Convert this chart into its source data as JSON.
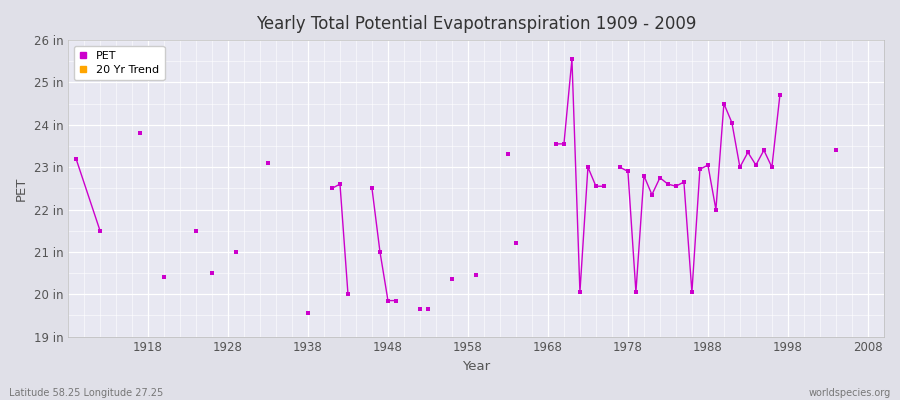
{
  "title": "Yearly Total Potential Evapotranspiration 1909 - 2009",
  "xlabel": "Year",
  "ylabel": "PET",
  "bottom_left": "Latitude 58.25 Longitude 27.25",
  "bottom_right": "worldspecies.org",
  "ylim": [
    19,
    26
  ],
  "ytick_labels": [
    "19 in",
    "20 in",
    "21 in",
    "22 in",
    "23 in",
    "24 in",
    "25 in",
    "26 in"
  ],
  "ytick_values": [
    19,
    20,
    21,
    22,
    23,
    24,
    25,
    26
  ],
  "xlim": [
    1908,
    2010
  ],
  "xtick_values": [
    1918,
    1928,
    1938,
    1948,
    1958,
    1968,
    1978,
    1988,
    1998,
    2008
  ],
  "pet_color": "#cc00cc",
  "trend_color": "#ffa500",
  "bg_color": "#e0e0e8",
  "plot_bg": "#e8e8f2",
  "grid_color": "#ffffff",
  "data": [
    [
      1909,
      23.2
    ],
    [
      1912,
      21.5
    ],
    [
      1917,
      23.8
    ],
    [
      1920,
      20.4
    ],
    [
      1924,
      21.5
    ],
    [
      1926,
      20.5
    ],
    [
      1929,
      21.0
    ],
    [
      1933,
      23.1
    ],
    [
      1938,
      19.55
    ],
    [
      1941,
      22.5
    ],
    [
      1942,
      22.6
    ],
    [
      1943,
      20.0
    ],
    [
      1946,
      22.5
    ],
    [
      1947,
      21.0
    ],
    [
      1948,
      19.85
    ],
    [
      1949,
      19.85
    ],
    [
      1952,
      19.65
    ],
    [
      1953,
      19.65
    ],
    [
      1956,
      20.35
    ],
    [
      1959,
      20.45
    ],
    [
      1963,
      23.3
    ],
    [
      1964,
      21.2
    ],
    [
      1969,
      23.55
    ],
    [
      1970,
      23.55
    ],
    [
      1971,
      25.55
    ],
    [
      1972,
      20.05
    ],
    [
      1973,
      23.0
    ],
    [
      1974,
      22.55
    ],
    [
      1975,
      22.55
    ],
    [
      1977,
      23.0
    ],
    [
      1978,
      22.9
    ],
    [
      1979,
      20.05
    ],
    [
      1980,
      22.8
    ],
    [
      1981,
      22.35
    ],
    [
      1982,
      22.75
    ],
    [
      1983,
      22.6
    ],
    [
      1984,
      22.55
    ],
    [
      1985,
      22.65
    ],
    [
      1986,
      20.05
    ],
    [
      1987,
      22.95
    ],
    [
      1988,
      23.05
    ],
    [
      1989,
      22.0
    ],
    [
      1990,
      24.5
    ],
    [
      1991,
      24.05
    ],
    [
      1992,
      23.0
    ],
    [
      1993,
      23.35
    ],
    [
      1994,
      23.05
    ],
    [
      1995,
      23.4
    ],
    [
      1996,
      23.0
    ],
    [
      1997,
      24.7
    ],
    [
      2004,
      23.4
    ]
  ],
  "connected_segments": [
    [
      1909,
      1912
    ],
    [
      1941,
      1942,
      1943
    ],
    [
      1946,
      1947,
      1948,
      1949
    ],
    [
      1969,
      1970,
      1971,
      1972,
      1973,
      1974,
      1975
    ],
    [
      1977,
      1978,
      1979,
      1980,
      1981,
      1982,
      1983,
      1984,
      1985,
      1986,
      1987,
      1988,
      1989,
      1990,
      1991,
      1992,
      1993,
      1994,
      1995,
      1996,
      1997
    ]
  ]
}
